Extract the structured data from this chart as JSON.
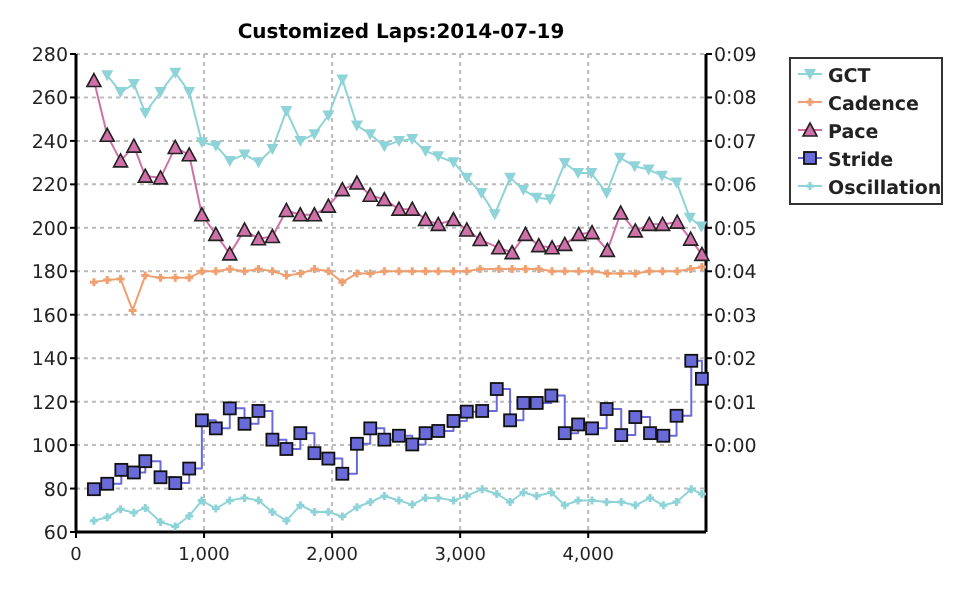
{
  "chart_data": {
    "type": "line",
    "title": "Customized Laps:2014-07-19",
    "xlim": [
      0,
      4920
    ],
    "xticks": [
      0,
      {
        "value": 1000,
        "label": "1,000"
      },
      {
        "value": 2000,
        "label": "2,000"
      },
      {
        "value": 3000,
        "label": "3,000"
      },
      {
        "value": 4000,
        "label": "4,000"
      }
    ],
    "ylim": [
      60,
      280
    ],
    "yticks": [
      60,
      80,
      100,
      120,
      140,
      160,
      180,
      200,
      220,
      240,
      260,
      280
    ],
    "y2lim": [
      -2,
      9
    ],
    "y2ticks": [
      {
        "value": 0,
        "label": "0:00"
      },
      {
        "value": 1,
        "label": "0:01"
      },
      {
        "value": 2,
        "label": "0:02"
      },
      {
        "value": 3,
        "label": "0:03"
      },
      {
        "value": 4,
        "label": "0:04"
      },
      {
        "value": 5,
        "label": "0:05"
      },
      {
        "value": 6,
        "label": "0:06"
      },
      {
        "value": 7,
        "label": "0:07"
      },
      {
        "value": 8,
        "label": "0:08"
      },
      {
        "value": 9,
        "label": "0:09"
      }
    ],
    "grid": true,
    "legend": "right",
    "line_style": "solid",
    "series": [
      {
        "name": "GCT",
        "color": "#8ed3d8",
        "marker": "triangle_down",
        "x": [
          244,
          348,
          452,
          541,
          660,
          775,
          884,
          983,
          1092,
          1201,
          1316,
          1425,
          1534,
          1643,
          1752,
          1862,
          1971,
          2080,
          2194,
          2298,
          2408,
          2522,
          2626,
          2730,
          2829,
          2948,
          3052,
          3166,
          3270,
          3390,
          3494,
          3598,
          3702,
          3817,
          3921,
          4025,
          4144,
          4248,
          4363,
          4472,
          4576,
          4690,
          4794,
          4883
        ],
        "values": [
          270.2,
          262.5,
          266.2,
          252.9,
          262.5,
          271.4,
          262.5,
          239.4,
          237.8,
          230.8,
          233.8,
          230.2,
          236.3,
          253.8,
          240,
          243.1,
          251.7,
          268.3,
          247.1,
          243.1,
          237.5,
          240,
          240.9,
          235.4,
          232.9,
          230.2,
          223.1,
          216,
          206.2,
          223.1,
          217.5,
          213.8,
          213.2,
          229.8,
          225.2,
          225.2,
          216,
          232.3,
          228.3,
          226.8,
          224,
          220.9,
          204.6,
          200.6
        ]
      },
      {
        "name": "Cadence",
        "color": "#f0a070",
        "marker": "cross",
        "x": [
          140,
          244,
          348,
          442,
          541,
          660,
          775,
          884,
          983,
          1092,
          1201,
          1316,
          1425,
          1534,
          1643,
          1752,
          1862,
          1971,
          2080,
          2194,
          2298,
          2408,
          2522,
          2626,
          2730,
          2829,
          2948,
          3052,
          3156,
          3302,
          3406,
          3510,
          3614,
          3718,
          3817,
          3926,
          4030,
          4150,
          4254,
          4368,
          4477,
          4581,
          4695,
          4800,
          4888
        ],
        "values": [
          175,
          176,
          176.5,
          162,
          178,
          177,
          177,
          177,
          180,
          180,
          181,
          180,
          181,
          180,
          178,
          179,
          181,
          180,
          175,
          179,
          179,
          180,
          180,
          180,
          180,
          180,
          180,
          180,
          181,
          181,
          181,
          181,
          181,
          180,
          180,
          180,
          180,
          179,
          179,
          179,
          180,
          180,
          180,
          181,
          182
        ]
      },
      {
        "name": "Pace",
        "color": "#d070a8",
        "marker": "triangle",
        "axis": "y2",
        "x": [
          140,
          244,
          348,
          452,
          541,
          660,
          775,
          884,
          983,
          1092,
          1201,
          1316,
          1425,
          1534,
          1643,
          1752,
          1862,
          1971,
          2080,
          2194,
          2298,
          2408,
          2522,
          2626,
          2730,
          2829,
          2948,
          3052,
          3156,
          3302,
          3406,
          3510,
          3614,
          3718,
          3817,
          3926,
          4030,
          4150,
          4254,
          4368,
          4477,
          4581,
          4695,
          4800,
          4888
        ],
        "values": [
          8.39,
          7.13,
          6.54,
          6.88,
          6.19,
          6.15,
          6.85,
          6.68,
          5.3,
          4.85,
          4.4,
          4.95,
          4.75,
          4.8,
          5.4,
          5.3,
          5.3,
          5.5,
          5.88,
          6.03,
          5.75,
          5.65,
          5.43,
          5.43,
          5.19,
          5.08,
          5.19,
          4.95,
          4.73,
          4.54,
          4.43,
          4.85,
          4.59,
          4.54,
          4.62,
          4.85,
          4.89,
          4.48,
          5.34,
          4.93,
          5.08,
          5.08,
          5.13,
          4.74,
          4.39
        ]
      },
      {
        "name": "Stride",
        "color": "#6a6ad8",
        "marker": "square",
        "type": "step",
        "x": [
          140,
          244,
          354,
          452,
          541,
          660,
          775,
          884,
          983,
          1092,
          1201,
          1316,
          1425,
          1534,
          1643,
          1752,
          1862,
          1971,
          2080,
          2194,
          2298,
          2408,
          2522,
          2626,
          2730,
          2829,
          2948,
          3052,
          3172,
          3286,
          3390,
          3494,
          3598,
          3712,
          3817,
          3921,
          4030,
          4144,
          4258,
          4368,
          4483,
          4587,
          4690,
          4805,
          4888
        ],
        "values": [
          79.7,
          82.2,
          88.6,
          87.4,
          92.6,
          85.2,
          82.5,
          89.2,
          111.4,
          107.7,
          116.9,
          109.8,
          115.7,
          102.5,
          98.2,
          105.5,
          96.3,
          93.8,
          86.8,
          100.6,
          107.7,
          102.5,
          104.3,
          100.3,
          105.5,
          106.5,
          111.1,
          115.4,
          115.7,
          125.8,
          111.4,
          119.4,
          119.4,
          122.8,
          105.5,
          109.5,
          107.7,
          116.6,
          104.6,
          112.9,
          105.5,
          104.3,
          113.5,
          138.8,
          130.5
        ]
      },
      {
        "name": "Oscillation",
        "color": "#8ed3d8",
        "marker": "cross",
        "x": [
          140,
          244,
          348,
          452,
          541,
          660,
          775,
          884,
          983,
          1092,
          1201,
          1316,
          1425,
          1534,
          1643,
          1752,
          1862,
          1971,
          2080,
          2194,
          2298,
          2408,
          2522,
          2626,
          2730,
          2829,
          2948,
          3052,
          3172,
          3286,
          3390,
          3494,
          3598,
          3712,
          3817,
          3921,
          4030,
          4144,
          4258,
          4368,
          4483,
          4587,
          4690,
          4805,
          4888
        ],
        "values": [
          65.2,
          66.8,
          70.5,
          68.9,
          71.1,
          64.6,
          62.5,
          67.4,
          74.5,
          70.8,
          74.5,
          75.7,
          74.5,
          69.2,
          65.2,
          72.3,
          69.2,
          69.2,
          67.1,
          71.4,
          73.8,
          76.6,
          74.5,
          72.6,
          75.7,
          75.7,
          74.5,
          76.6,
          79.7,
          77.5,
          73.8,
          78.2,
          76.6,
          78.2,
          72.3,
          74.5,
          74.5,
          73.8,
          73.8,
          72.3,
          75.7,
          72.3,
          73.8,
          79.7,
          77.5
        ]
      }
    ]
  }
}
